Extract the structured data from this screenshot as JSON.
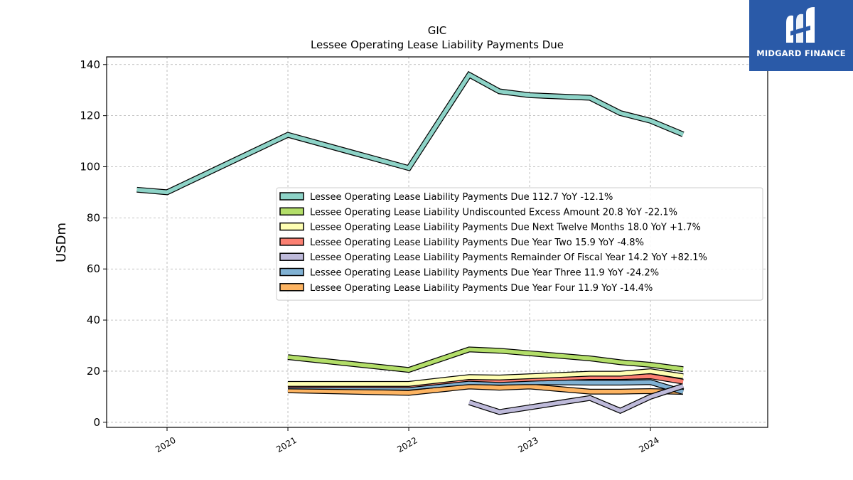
{
  "chart_data": {
    "type": "line",
    "title": "GIC",
    "subtitle": "Lessee Operating Lease Liability Payments Due",
    "ylabel": "USDm",
    "xlabel": "",
    "ylim": [
      -2,
      143
    ],
    "xlim": [
      2019.5,
      2024.97
    ],
    "grid": true,
    "legend_position": "center-right",
    "x_ticks": [
      {
        "label": "2020",
        "value": 2020.0
      },
      {
        "label": "2021",
        "value": 2021.0
      },
      {
        "label": "2022",
        "value": 2022.0
      },
      {
        "label": "2023",
        "value": 2023.0
      },
      {
        "label": "2024",
        "value": 2024.0
      }
    ],
    "y_ticks": [
      0,
      20,
      40,
      60,
      80,
      100,
      120,
      140
    ],
    "series": [
      {
        "name": "Lessee Operating Lease Liability Payments Due  112.7 YoY -12.1%",
        "color": "#8dd3c7",
        "x": [
          2019.75,
          2020.0,
          2021.0,
          2022.0,
          2022.5,
          2022.75,
          2023.0,
          2023.5,
          2023.75,
          2024.0,
          2024.27
        ],
        "y": [
          91,
          90,
          112.5,
          99.5,
          136,
          129.5,
          128,
          127,
          121,
          118,
          112.7
        ]
      },
      {
        "name": "Lessee Operating Lease Liability Undiscounted Excess Amount  20.8 YoY -22.1%",
        "color": "#b3de69",
        "x": [
          2021.0,
          2022.0,
          2022.5,
          2022.75,
          2023.0,
          2023.5,
          2023.75,
          2024.0,
          2024.27
        ],
        "y": [
          25.5,
          20.5,
          28.5,
          28,
          27,
          25,
          23.5,
          22.5,
          20.8
        ]
      },
      {
        "name": "Lessee Operating Lease Liability Payments Due Next Twelve Months  18.0 YoY +1.7%",
        "color": "#ffffb3",
        "x": [
          2021.0,
          2022.0,
          2022.5,
          2022.75,
          2023.0,
          2023.5,
          2023.75,
          2024.0,
          2024.27
        ],
        "y": [
          15,
          15,
          17.7,
          17.5,
          18,
          19,
          19,
          20,
          18.0
        ]
      },
      {
        "name": "Lessee Operating Lease Liability Payments Due Year Two  15.9 YoY -4.8%",
        "color": "#fb8072",
        "x": [
          2021.0,
          2022.0,
          2022.5,
          2022.75,
          2023.0,
          2023.5,
          2023.75,
          2024.0,
          2024.27
        ],
        "y": [
          14.5,
          14.5,
          17,
          16.5,
          17,
          17.7,
          17.7,
          18,
          15.9
        ]
      },
      {
        "name": "Lessee Operating Lease Liability Payments Remainder Of Fiscal Year  14.2 YoY +82.1%",
        "color": "#bebada",
        "x": [
          2022.5,
          2022.75,
          2023.5,
          2023.75,
          2024.0,
          2024.27
        ],
        "y": [
          7.8,
          4,
          9.5,
          4.5,
          10,
          14.2
        ]
      },
      {
        "name": "Lessee Operating Lease Liability Payments Due Year Three  11.9 YoY -24.2%",
        "color": "#80b1d3",
        "x": [
          2021.0,
          2022.0,
          2022.5,
          2022.75,
          2023.0,
          2023.5,
          2023.75,
          2024.0,
          2024.27
        ],
        "y": [
          14,
          13.5,
          15.7,
          15.5,
          15.7,
          15.5,
          15.5,
          15.7,
          11.9
        ]
      },
      {
        "name": "Lessee Operating Lease Liability Payments Due Year Four  11.9 YoY -14.4%",
        "color": "#fdb462",
        "x": [
          2021.0,
          2022.0,
          2022.5,
          2022.75,
          2023.0,
          2023.5,
          2023.75,
          2024.0,
          2024.27
        ],
        "y": [
          12.5,
          11.5,
          14,
          13.5,
          14,
          12,
          12,
          12.2,
          11.9
        ]
      }
    ]
  },
  "logo": {
    "text": "MIDGARD FINANCE"
  }
}
